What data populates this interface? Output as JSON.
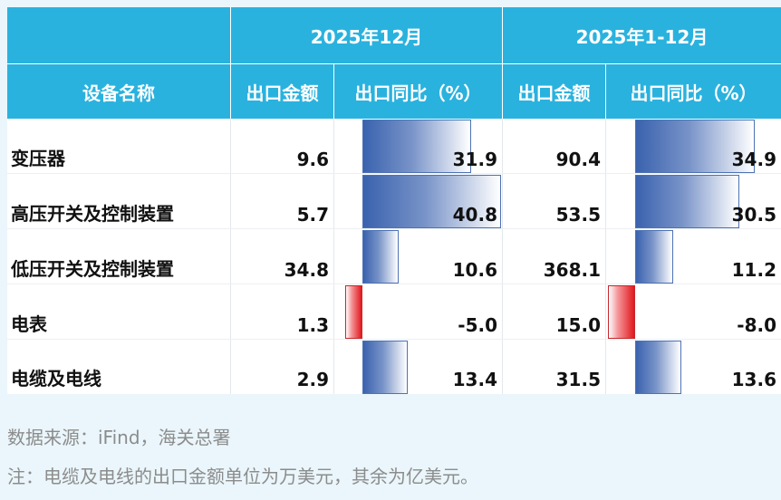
{
  "table": {
    "header_groups": [
      "2025年12月",
      "2025年1-12月"
    ],
    "columns": [
      "设备名称",
      "出口金额",
      "出口同比（%）",
      "出口金额",
      "出口同比（%）"
    ],
    "rows": [
      {
        "name": "变压器",
        "dec_amount": "9.6",
        "dec_yoy": "31.9",
        "ytd_amount": "90.4",
        "ytd_yoy": "34.9"
      },
      {
        "name": "高压开关及控制装置",
        "dec_amount": "5.7",
        "dec_yoy": "40.8",
        "ytd_amount": "53.5",
        "ytd_yoy": "30.5"
      },
      {
        "name": "低压开关及控制装置",
        "dec_amount": "34.8",
        "dec_yoy": "10.6",
        "ytd_amount": "368.1",
        "ytd_yoy": "11.2"
      },
      {
        "name": "电表",
        "dec_amount": "1.3",
        "dec_yoy": "-5.0",
        "ytd_amount": "15.0",
        "ytd_yoy": "-8.0"
      },
      {
        "name": "电缆及电线",
        "dec_amount": "2.9",
        "dec_yoy": "13.4",
        "ytd_amount": "31.5",
        "ytd_yoy": "13.6"
      }
    ]
  },
  "footer": {
    "source": "数据来源：iFind，海关总署",
    "note": "注：电缆及电线的出口金额单位为万美元，其余为亿美元。"
  },
  "colors": {
    "header_bg": "#2ab2de",
    "positive_bar": "#3a62ae",
    "negative_bar": "#e0181d",
    "page_bg": "#eaf6fb"
  }
}
